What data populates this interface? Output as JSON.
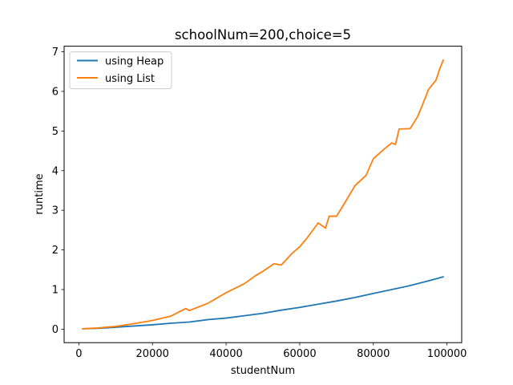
{
  "chart_data": {
    "type": "line",
    "title": "schoolNum=200,choice=5",
    "xlabel": "studentNum",
    "ylabel": "runtime",
    "xlim": [
      -4000,
      104000
    ],
    "ylim": [
      -0.34,
      7.14
    ],
    "xticks": [
      0,
      20000,
      40000,
      60000,
      80000,
      100000
    ],
    "yticks": [
      0,
      1,
      2,
      3,
      4,
      5,
      6,
      7
    ],
    "xtick_labels": [
      "0",
      "20000",
      "40000",
      "60000",
      "80000",
      "100000"
    ],
    "ytick_labels": [
      "0",
      "1",
      "2",
      "3",
      "4",
      "5",
      "6",
      "7"
    ],
    "grid": false,
    "legend_position": "upper-left",
    "series": [
      {
        "name": "using Heap",
        "color": "#1f77b4",
        "x": [
          1000,
          5000,
          10000,
          15000,
          20000,
          25000,
          30000,
          35000,
          40000,
          45000,
          50000,
          55000,
          60000,
          65000,
          70000,
          75000,
          80000,
          85000,
          90000,
          95000,
          99000
        ],
        "y": [
          0.01,
          0.02,
          0.05,
          0.08,
          0.11,
          0.15,
          0.18,
          0.24,
          0.28,
          0.34,
          0.4,
          0.48,
          0.55,
          0.63,
          0.71,
          0.8,
          0.9,
          1.0,
          1.1,
          1.22,
          1.32
        ]
      },
      {
        "name": "using List",
        "color": "#ff7f0e",
        "x": [
          1000,
          5000,
          10000,
          15000,
          20000,
          25000,
          29000,
          30000,
          35000,
          40000,
          45000,
          48000,
          50000,
          53000,
          55000,
          58000,
          60000,
          62000,
          65000,
          67000,
          68000,
          70000,
          72000,
          75000,
          78000,
          80000,
          83000,
          85000,
          86000,
          87000,
          90000,
          92000,
          93000,
          95000,
          97000,
          98000,
          99000
        ],
        "y": [
          0.01,
          0.03,
          0.07,
          0.14,
          0.22,
          0.33,
          0.52,
          0.47,
          0.65,
          0.92,
          1.15,
          1.35,
          1.46,
          1.65,
          1.62,
          1.92,
          2.08,
          2.3,
          2.68,
          2.55,
          2.85,
          2.85,
          3.15,
          3.62,
          3.88,
          4.3,
          4.55,
          4.7,
          4.66,
          5.05,
          5.06,
          5.36,
          5.58,
          6.05,
          6.28,
          6.56,
          6.79
        ]
      }
    ]
  }
}
